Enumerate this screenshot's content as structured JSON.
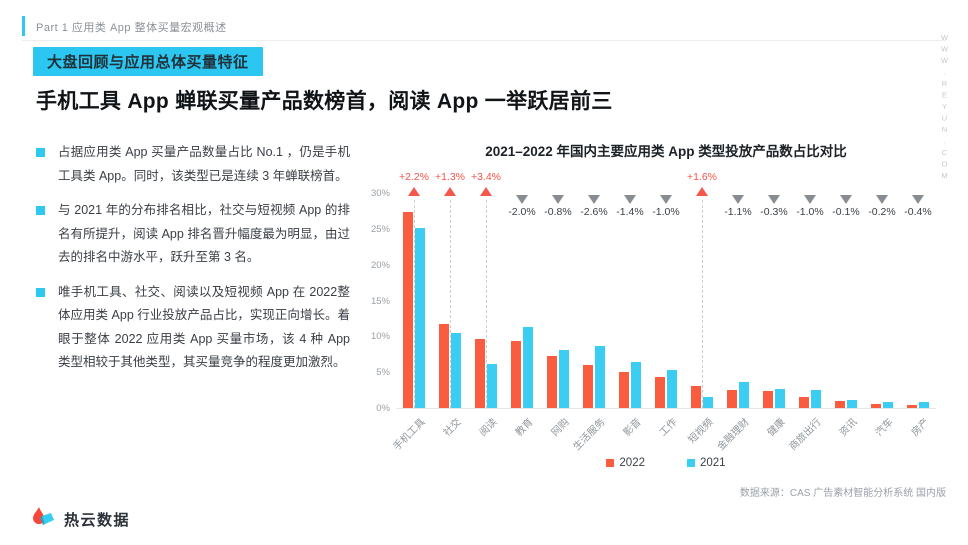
{
  "header": {
    "eyebrow": "Part 1 应用类 App 整体买量宏观概述",
    "section_badge": "大盘回顾与应用总体买量特征",
    "title": "手机工具 App 蝉联买量产品数榜首，阅读 App 一举跃居前三",
    "watermark": "WWW.REYUN.COM"
  },
  "bullets": [
    "占据应用类 App 买量产品数量占比 No.1 ，仍是手机工具类 App。同时，该类型已是连续 3 年蝉联榜首。",
    "与 2021 年的分布排名相比，社交与短视频 App 的排名有所提升，阅读 App 排名晋升幅度最为明显，由过去的排名中游水平，跃升至第 3 名。",
    "唯手机工具、社交、阅读以及短视频 App 在 2022整体应用类 App 行业投放产品占比，实现正向增长。着眼于整体 2022 应用类 App 买量市场，该 4 种 App 类型相较于其他类型，其买量竞争的程度更加激烈。"
  ],
  "chart_data": {
    "type": "bar",
    "title": "2021–2022 年国内主要应用类  App 类型投放产品数占比对比",
    "categories": [
      "手机工具",
      "社交",
      "阅读",
      "教育",
      "网购",
      "生活服务",
      "影音",
      "工作",
      "短视频",
      "金融理财",
      "健康",
      "商旅出行",
      "资讯",
      "汽车",
      "房产"
    ],
    "series": [
      {
        "name": "2022",
        "color": "#f95c3f",
        "values": [
          27.3,
          11.7,
          9.6,
          9.3,
          7.3,
          6.0,
          5.0,
          4.3,
          3.1,
          2.5,
          2.4,
          1.5,
          1.0,
          0.6,
          0.4
        ]
      },
      {
        "name": "2021",
        "color": "#3bcdf2",
        "values": [
          25.1,
          10.4,
          6.2,
          11.3,
          8.1,
          8.6,
          6.4,
          5.3,
          1.5,
          3.6,
          2.7,
          2.5,
          1.1,
          0.8,
          0.8
        ]
      }
    ],
    "changes": [
      "+2.2%",
      "+1.3%",
      "+3.4%",
      "-2.0%",
      "-0.8%",
      "-2.6%",
      "-1.4%",
      "-1.0%",
      "+1.6%",
      "-1.1%",
      "-0.3%",
      "-1.0%",
      "-0.1%",
      "-0.2%",
      "-0.4%"
    ],
    "y_ticks": [
      "0%",
      "5%",
      "10%",
      "15%",
      "20%",
      "25%",
      "30%"
    ],
    "ylim": [
      0,
      30
    ],
    "grid": false,
    "legend_position": "bottom"
  },
  "footer": {
    "source": "数据来源：CAS 广告素材智能分析系统 国内版",
    "logo_text": "热云数据"
  },
  "colors": {
    "accent_cyan": "#2ec8f0",
    "bar_2022": "#f95c3f",
    "bar_2021": "#3bcdf2",
    "positive_label": "#f4544a",
    "negative_label": "#3d4248",
    "up_triangle": "#f4584a",
    "down_triangle": "#878d93",
    "muted_text": "#9aa1a8"
  }
}
